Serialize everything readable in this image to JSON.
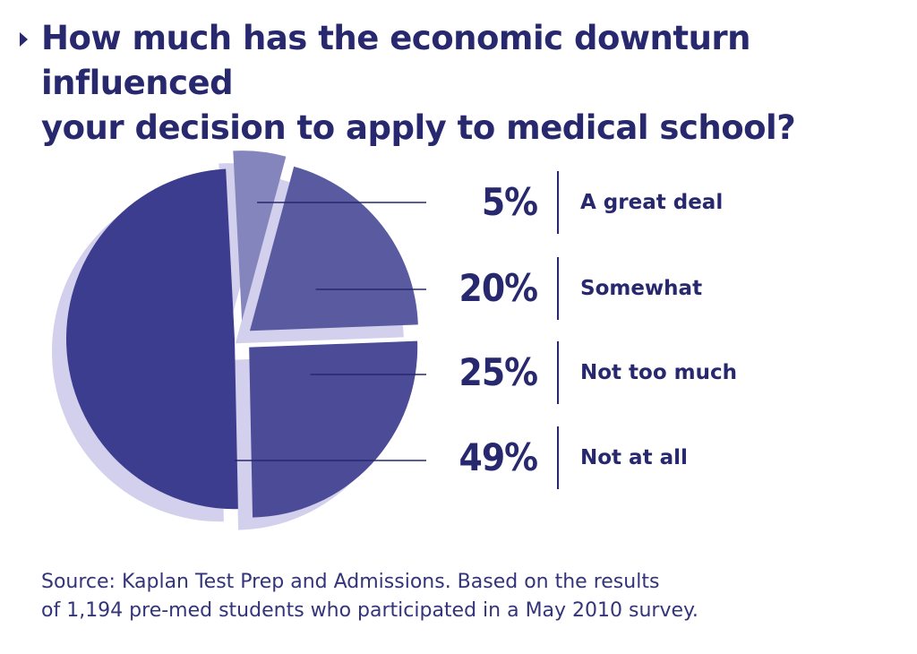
{
  "title_lines": [
    "How much has the economic downturn influenced",
    "your decision to apply to medical school?"
  ],
  "chart_data": {
    "type": "pie",
    "title": "How much has the economic downturn influenced your decision to apply to medical school?",
    "unit": "%",
    "slices": [
      {
        "label": "A great deal",
        "value": 5,
        "value_label": "5%",
        "color": "#8585bd"
      },
      {
        "label": "Somewhat",
        "value": 20,
        "value_label": "20%",
        "color": "#5a5aa0"
      },
      {
        "label": "Not too much",
        "value": 25,
        "value_label": "25%",
        "color": "#4b4b98"
      },
      {
        "label": "Not at all",
        "value": 49,
        "value_label": "49%",
        "color": "#3c3d8e"
      }
    ],
    "shadow_color": "#d2d0ec",
    "text_color": "#27286e"
  },
  "source_lines": [
    "Source: Kaplan Test Prep and Admissions. Based on the results",
    "of 1,194 pre-med students who participated in a May 2010 survey."
  ]
}
